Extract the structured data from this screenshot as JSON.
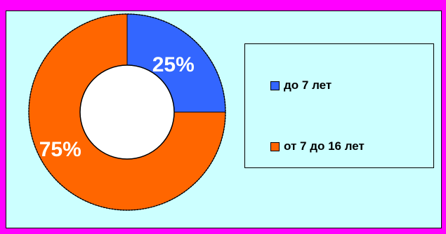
{
  "chart_data": {
    "type": "pie",
    "donut": true,
    "categories": [
      "до 7 лет",
      "от 7 до 16 лет"
    ],
    "values": [
      25,
      75
    ],
    "data_labels": [
      "25%",
      "75%"
    ],
    "colors": [
      "#3366ff",
      "#ff6600"
    ],
    "legend_position": "right"
  },
  "colors": {
    "frame": "#ff00ff",
    "background": "#ccffff",
    "label": "#ffffff"
  }
}
